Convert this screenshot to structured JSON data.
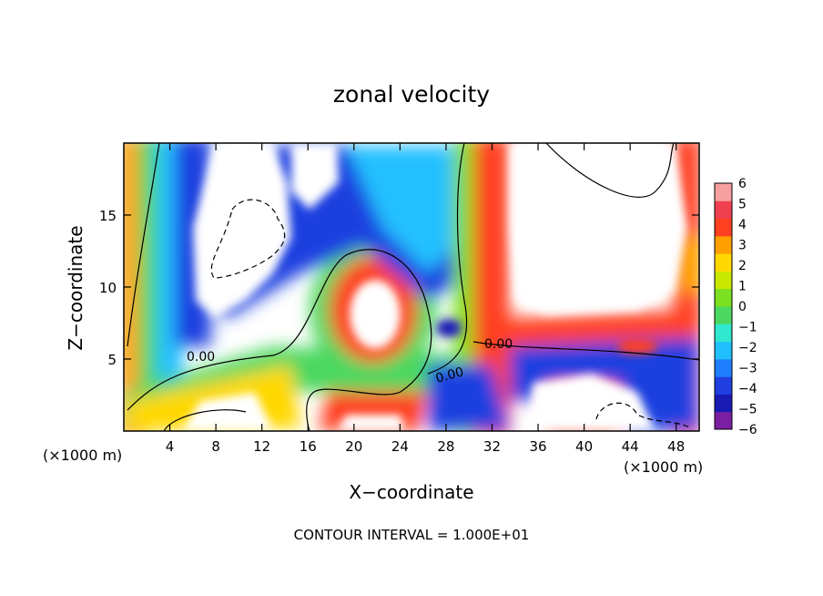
{
  "chart_data": {
    "type": "heatmap",
    "title": "zonal velocity",
    "xlabel": "X−coordinate",
    "ylabel": "Z−coordinate",
    "x_unit_label": "(×1000 m)",
    "x_ticks": [
      "4",
      "8",
      "12",
      "16",
      "20",
      "24",
      "28",
      "32",
      "36",
      "40",
      "44",
      "48"
    ],
    "y_ticks": [
      "5",
      "10",
      "15"
    ],
    "xlim": [
      0,
      50
    ],
    "ylim": [
      0,
      20
    ],
    "colorbar": {
      "labels": [
        "6",
        "5",
        "4",
        "3",
        "2",
        "1",
        "0",
        "−1",
        "−2",
        "−3",
        "−4",
        "−5",
        "−6"
      ],
      "range": [
        -6,
        6
      ],
      "colors": [
        "#7b1fa2",
        "#1a1ab5",
        "#1f3fe0",
        "#1f7fff",
        "#20c0ff",
        "#30e8d0",
        "#4cd860",
        "#7ae020",
        "#c8e800",
        "#ffd800",
        "#ffa000",
        "#ff4020",
        "#f04050",
        "#f8a0a0"
      ]
    },
    "contour_labels": [
      "0.00",
      "0.00",
      "0.00"
    ],
    "footer": "CONTOUR INTERVAL = 1.000E+01"
  }
}
